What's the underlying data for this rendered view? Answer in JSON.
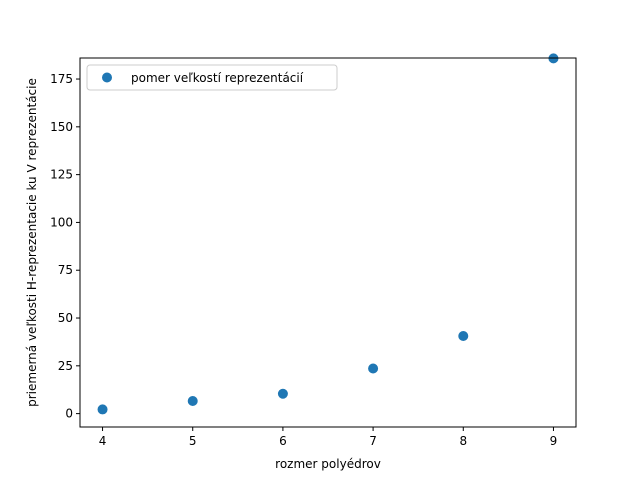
{
  "chart_data": {
    "type": "scatter",
    "title": "",
    "xlabel": "rozmer polyédrov",
    "ylabel": "priemerná veľkosti H-reprezentacie ku V reprezentácie",
    "xlim": [
      3.75,
      9.25
    ],
    "ylim": [
      -7,
      186
    ],
    "xticks": [
      4,
      5,
      6,
      7,
      8,
      9
    ],
    "yticks": [
      0,
      25,
      50,
      75,
      100,
      125,
      150,
      175
    ],
    "grid": false,
    "legend_position": "top-left",
    "series": [
      {
        "name": "pomer veľkostí reprezentácií",
        "color": "#1f77b4",
        "x": [
          4,
          5,
          6,
          7,
          8,
          9
        ],
        "y": [
          2.2,
          6.6,
          10.4,
          23.6,
          40.6,
          185.8
        ]
      }
    ]
  }
}
